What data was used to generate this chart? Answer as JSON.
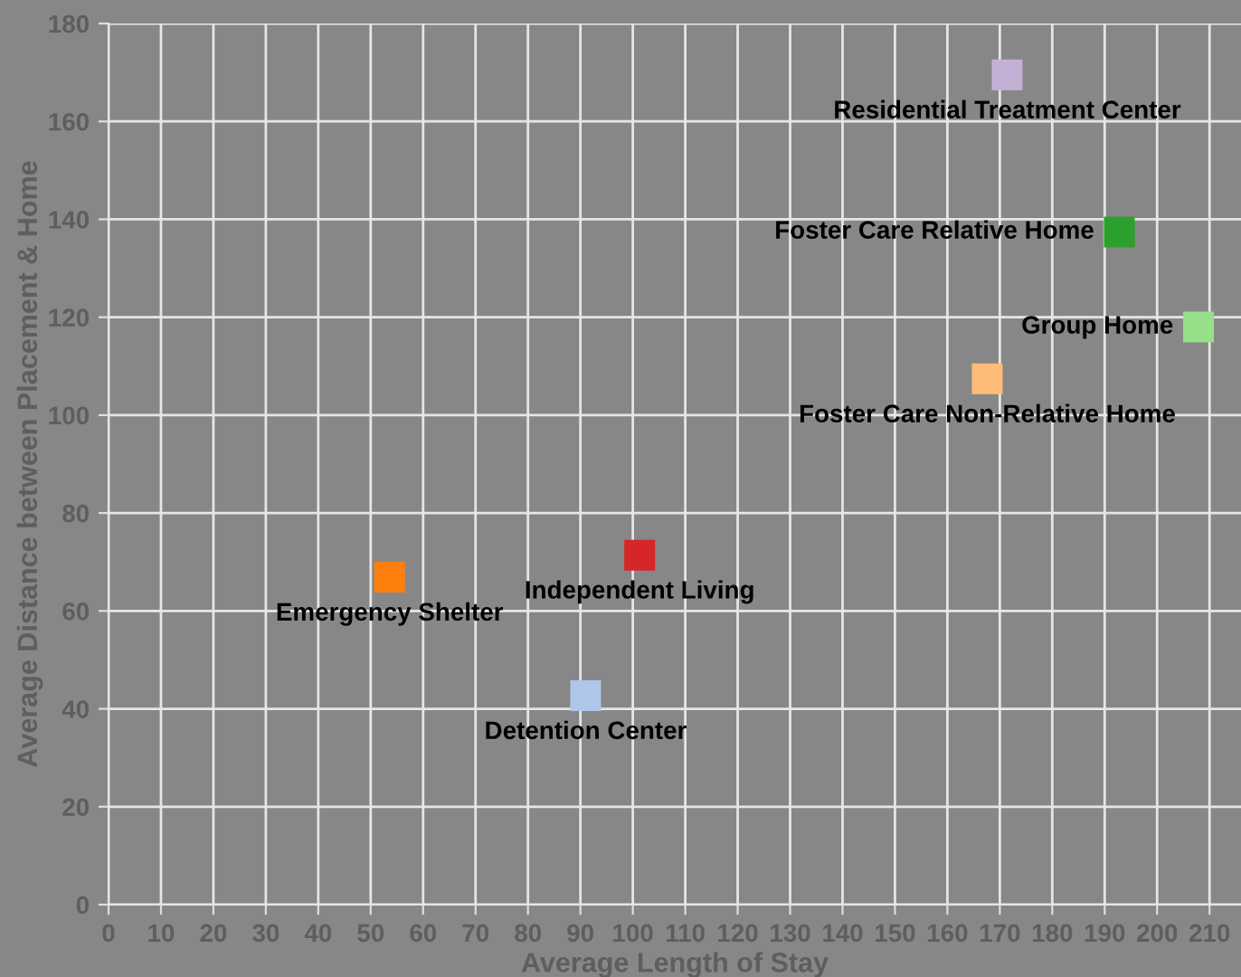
{
  "chart_data": {
    "type": "scatter",
    "xlabel": "Average Length of Stay",
    "ylabel": "Average Distance between Placement & Home",
    "marker": "square",
    "grid": true,
    "legend": false,
    "xlim": [
      0,
      216
    ],
    "xticks": [
      0,
      10,
      20,
      30,
      40,
      50,
      60,
      70,
      80,
      90,
      100,
      110,
      120,
      130,
      140,
      150,
      160,
      170,
      180,
      190,
      200,
      210
    ],
    "ylim": [
      0,
      180
    ],
    "yticks": [
      0,
      20,
      40,
      60,
      80,
      100,
      120,
      140,
      160,
      180
    ],
    "series": [
      {
        "name": "Emergency Shelter",
        "color": "#ff7f0e",
        "x": [
          53.6
        ],
        "values": [
          66.9
        ]
      },
      {
        "name": "Independent Living",
        "color": "#d62728",
        "x": [
          101.3
        ],
        "values": [
          71.4
        ]
      },
      {
        "name": "Detention Center",
        "color": "#aec7e8",
        "x": [
          91
        ],
        "values": [
          42.7
        ]
      },
      {
        "name": "Foster Care Relative Home",
        "color": "#2ca02c",
        "x": [
          192.8
        ],
        "values": [
          137.4
        ]
      },
      {
        "name": "Group Home",
        "color": "#98df8a",
        "x": [
          207.9
        ],
        "values": [
          118
        ]
      },
      {
        "name": "Foster Care Non-Relative Home",
        "color": "#ffbb78",
        "x": [
          167.6
        ],
        "values": [
          107.4
        ]
      },
      {
        "name": "Residential Treatment Center",
        "color": "#c5b0d5",
        "x": [
          171.4
        ],
        "values": [
          169.5
        ]
      }
    ]
  }
}
